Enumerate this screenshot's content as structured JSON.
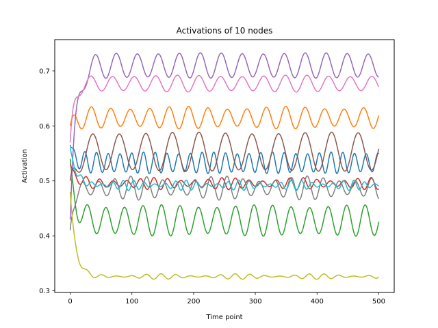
{
  "chart_data": {
    "type": "line",
    "title": "Activations of 10 nodes",
    "xlabel": "Time point",
    "ylabel": "Activation",
    "xlim": [
      -25,
      525
    ],
    "ylim": [
      0.297,
      0.757
    ],
    "xticks": [
      0,
      100,
      200,
      300,
      400,
      500
    ],
    "yticks": [
      0.3,
      0.4,
      0.5,
      0.6,
      0.7
    ],
    "grid": false,
    "legend": "none",
    "series": [
      {
        "color": "#1f77b4",
        "start": 0.565,
        "level": 0.533,
        "amp": 0.018,
        "period": 19.0,
        "phase": 0.0,
        "ampVar": 0.1,
        "tau": 8
      },
      {
        "color": "#ff7f0e",
        "start": 0.6,
        "level": 0.615,
        "amp": 0.018,
        "period": 31.5,
        "phase": 1.0,
        "ampVar": 0.15,
        "tau": 6
      },
      {
        "color": "#2ca02c",
        "start": 0.54,
        "level": 0.428,
        "amp": 0.026,
        "period": 30.0,
        "phase": 2.0,
        "ampVar": 0.1,
        "tau": 8
      },
      {
        "color": "#d62728",
        "start": 0.53,
        "level": 0.495,
        "amp": 0.008,
        "period": 22.0,
        "phase": 0.5,
        "ampVar": 0.4,
        "tau": 10
      },
      {
        "color": "#9467bd",
        "start": 0.43,
        "level": 0.71,
        "amp": 0.022,
        "period": 34.0,
        "phase": 0.3,
        "ampVar": 0.05,
        "tau": 9
      },
      {
        "color": "#8c564b",
        "start": 0.5,
        "level": 0.553,
        "amp": 0.034,
        "period": 43.0,
        "phase": 2.5,
        "ampVar": 0.05,
        "tau": 8
      },
      {
        "color": "#e377c2",
        "start": 0.57,
        "level": 0.677,
        "amp": 0.014,
        "period": 35.0,
        "phase": 1.8,
        "ampVar": 0.1,
        "tau": 6
      },
      {
        "color": "#7f7f7f",
        "start": 0.41,
        "level": 0.487,
        "amp": 0.017,
        "period": 26.0,
        "phase": 3.0,
        "ampVar": 0.3,
        "tau": 6
      },
      {
        "color": "#bcbd22",
        "start": 0.48,
        "level": 0.326,
        "amp": 0.003,
        "period": 24.0,
        "phase": 0.7,
        "ampVar": 0.7,
        "tau": 9
      },
      {
        "color": "#17becf",
        "start": 0.56,
        "level": 0.492,
        "amp": 0.006,
        "period": 17.0,
        "phase": 1.2,
        "ampVar": 0.6,
        "tau": 10
      }
    ],
    "n_points": 501
  }
}
